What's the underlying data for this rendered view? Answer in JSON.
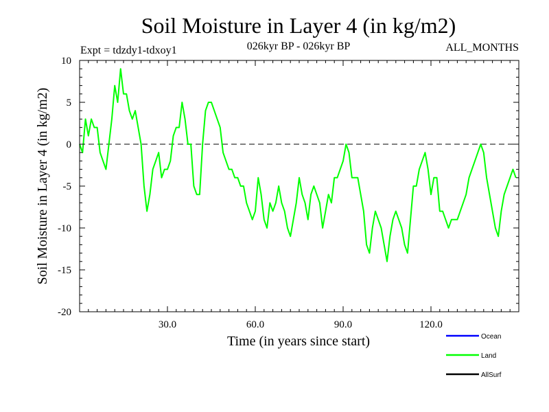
{
  "chart_data": {
    "type": "line",
    "title": "Soil Moisture in Layer 4 (in kg/m2)",
    "subtitle_left": "Expt = tdzdy1-tdxoy1",
    "subtitle_center": "026kyr BP - 026kyr BP",
    "subtitle_right": "ALL_MONTHS",
    "xlabel": "Time (in years since start)",
    "ylabel": "Soil Moisture in Layer 4 (in kg/m2)",
    "xlim": [
      0,
      150
    ],
    "ylim": [
      -20,
      10
    ],
    "xticks": [
      30,
      60,
      90,
      120
    ],
    "xtick_labels": [
      "30.0",
      "60.0",
      "90.0",
      "120.0"
    ],
    "yticks": [
      10,
      5,
      0,
      -5,
      -10,
      -15,
      -20
    ],
    "ytick_labels": [
      "10",
      "5",
      "0",
      "-5",
      "-10",
      "-15",
      "-20"
    ],
    "reference_line": 0,
    "legend": [
      {
        "name": "Ocean",
        "color": "#0000ff"
      },
      {
        "name": "Land",
        "color": "#00ff00"
      },
      {
        "name": "AllSurf",
        "color": "#000000"
      }
    ],
    "series": [
      {
        "name": "Land",
        "color": "#00ff00",
        "step": 1,
        "x_start": 0,
        "values": [
          0,
          -1,
          3,
          1,
          3,
          2,
          2,
          -1,
          -2,
          -3,
          0,
          3,
          7,
          5,
          9,
          6,
          6,
          4,
          3,
          4,
          2,
          0,
          -5,
          -8,
          -6,
          -3,
          -2,
          -1,
          -4,
          -3,
          -3,
          -2,
          1,
          2,
          2,
          5,
          3,
          0,
          0,
          -5,
          -6,
          -6,
          0,
          4,
          5,
          5,
          4,
          3,
          2,
          -1,
          -2,
          -3,
          -3,
          -4,
          -4,
          -5,
          -5,
          -7,
          -8,
          -9,
          -8,
          -4,
          -6,
          -9,
          -10,
          -7,
          -8,
          -7,
          -5,
          -7,
          -8,
          -10,
          -11,
          -9,
          -7,
          -4,
          -6,
          -7,
          -9,
          -6,
          -5,
          -6,
          -7,
          -10,
          -8,
          -6,
          -7,
          -4,
          -4,
          -3,
          -2,
          0,
          -1,
          -4,
          -4,
          -4,
          -6,
          -8,
          -12,
          -13,
          -10,
          -8,
          -9,
          -10,
          -12,
          -14,
          -11,
          -9,
          -8,
          -9,
          -10,
          -12,
          -13,
          -9,
          -5,
          -5,
          -3,
          -2,
          -1,
          -3,
          -6,
          -4,
          -4,
          -8,
          -8,
          -9,
          -10,
          -9,
          -9,
          -9,
          -8,
          -7,
          -6,
          -4,
          -3,
          -2,
          -1,
          0,
          -1,
          -4,
          -6,
          -8,
          -10,
          -11,
          -8,
          -6,
          -5,
          -4,
          -3,
          -4
        ]
      }
    ]
  }
}
